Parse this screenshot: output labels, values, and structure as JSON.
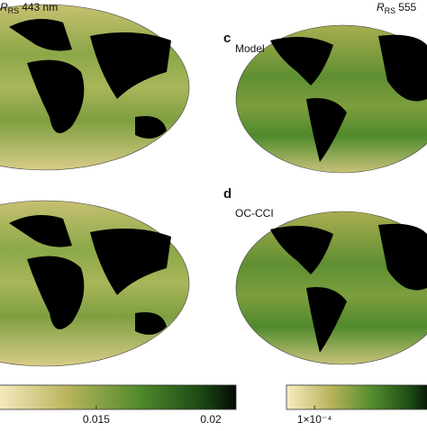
{
  "panels": [
    {
      "quantity": {
        "symbol": "R",
        "subscript": "RS",
        "text": "443 nm"
      }
    },
    {
      "quantity": {
        "symbol": "R",
        "subscript": "RS",
        "text": "555"
      }
    },
    {
      "letter": "c",
      "label": "Model"
    },
    {
      "letter": "d",
      "label": "OC-CCI"
    }
  ],
  "colorbars": [
    {
      "lim": [
        0.0106,
        0.0211
      ],
      "ticks": [
        {
          "value": 0.015,
          "label": "0.015"
        },
        {
          "value": 0.02,
          "label": "0.02"
        }
      ]
    },
    {
      "lim": [
        5e-05,
        0.00031
      ],
      "ticks": [
        {
          "value": 0.0001,
          "label": "1×10⁻⁴"
        }
      ]
    }
  ]
}
